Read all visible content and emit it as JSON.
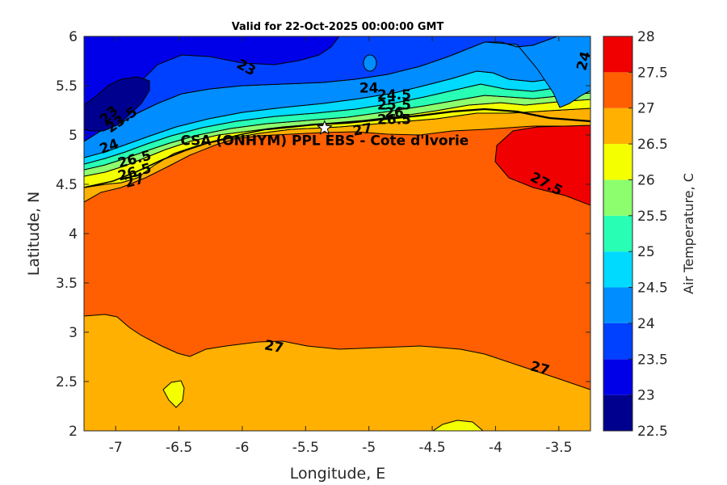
{
  "chart_data": {
    "type": "heatmap",
    "subtype": "filled-contour-map",
    "title": "Valid for 22-Oct-2025 00:00:00 GMT",
    "xlabel": "Longitude, E",
    "ylabel": "Latitude, N",
    "xlim": [
      -7.25,
      -3.25
    ],
    "ylim": [
      2,
      6
    ],
    "xticks": [
      -7,
      -6.5,
      -6,
      -5.5,
      -5,
      -4.5,
      -4,
      -3.5
    ],
    "xtick_labels": [
      "-7",
      "-6.5",
      "-6",
      "-5.5",
      "-5",
      "-4.5",
      "-4",
      "-3.5"
    ],
    "yticks": [
      2,
      2.5,
      3,
      3.5,
      4,
      4.5,
      5,
      5.5,
      6
    ],
    "ytick_labels": [
      "2",
      "2.5",
      "3",
      "3.5",
      "4",
      "4.5",
      "5",
      "5.5",
      "6"
    ],
    "colorbar": {
      "label": "Air Temperature, C",
      "levels": [
        22.5,
        23,
        23.5,
        24,
        24.5,
        25,
        25.5,
        26,
        26.5,
        27,
        27.5,
        28
      ],
      "tick_labels": [
        "22.5",
        "23",
        "23.5",
        "24",
        "24.5",
        "25",
        "25.5",
        "26",
        "26.5",
        "27",
        "27.5",
        "28"
      ],
      "colors": [
        "#00008f",
        "#0000e8",
        "#0040ff",
        "#008dff",
        "#00daff",
        "#29ffb4",
        "#8dff6e",
        "#f4ff00",
        "#ffb000",
        "#ff5f00",
        "#f00000",
        "#a10000"
      ]
    },
    "contour_labels": [
      {
        "text": "23",
        "lon": -5.97,
        "lat": 5.68
      },
      {
        "text": "23",
        "lon": -7.05,
        "lat": 5.2
      },
      {
        "text": "23.5",
        "lon": -6.95,
        "lat": 5.15
      },
      {
        "text": "24",
        "lon": -5.0,
        "lat": 5.47
      },
      {
        "text": "24.5",
        "lon": -4.8,
        "lat": 5.4
      },
      {
        "text": "25.5",
        "lon": -4.8,
        "lat": 5.3
      },
      {
        "text": "26",
        "lon": -4.8,
        "lat": 5.22
      },
      {
        "text": "26.5",
        "lon": -4.8,
        "lat": 5.15
      },
      {
        "text": "27",
        "lon": -5.05,
        "lat": 5.05
      },
      {
        "text": "27.5",
        "lon": -3.6,
        "lat": 4.5
      },
      {
        "text": "27",
        "lon": -5.75,
        "lat": 2.85
      },
      {
        "text": "27",
        "lon": -3.65,
        "lat": 2.63
      },
      {
        "text": "24",
        "lon": -3.3,
        "lat": 5.75
      },
      {
        "text": "24",
        "lon": -7.05,
        "lat": 4.88
      },
      {
        "text": "26.5",
        "lon": -6.85,
        "lat": 4.75
      },
      {
        "text": "26.5",
        "lon": -6.85,
        "lat": 4.62
      },
      {
        "text": "27",
        "lon": -6.85,
        "lat": 4.53
      }
    ],
    "site": {
      "name": "CSA (ONHYM) PPL EBS  - Cote d'Ivorie",
      "lon": -5.35,
      "lat": 5.07,
      "marker": "star"
    },
    "grid": false
  }
}
